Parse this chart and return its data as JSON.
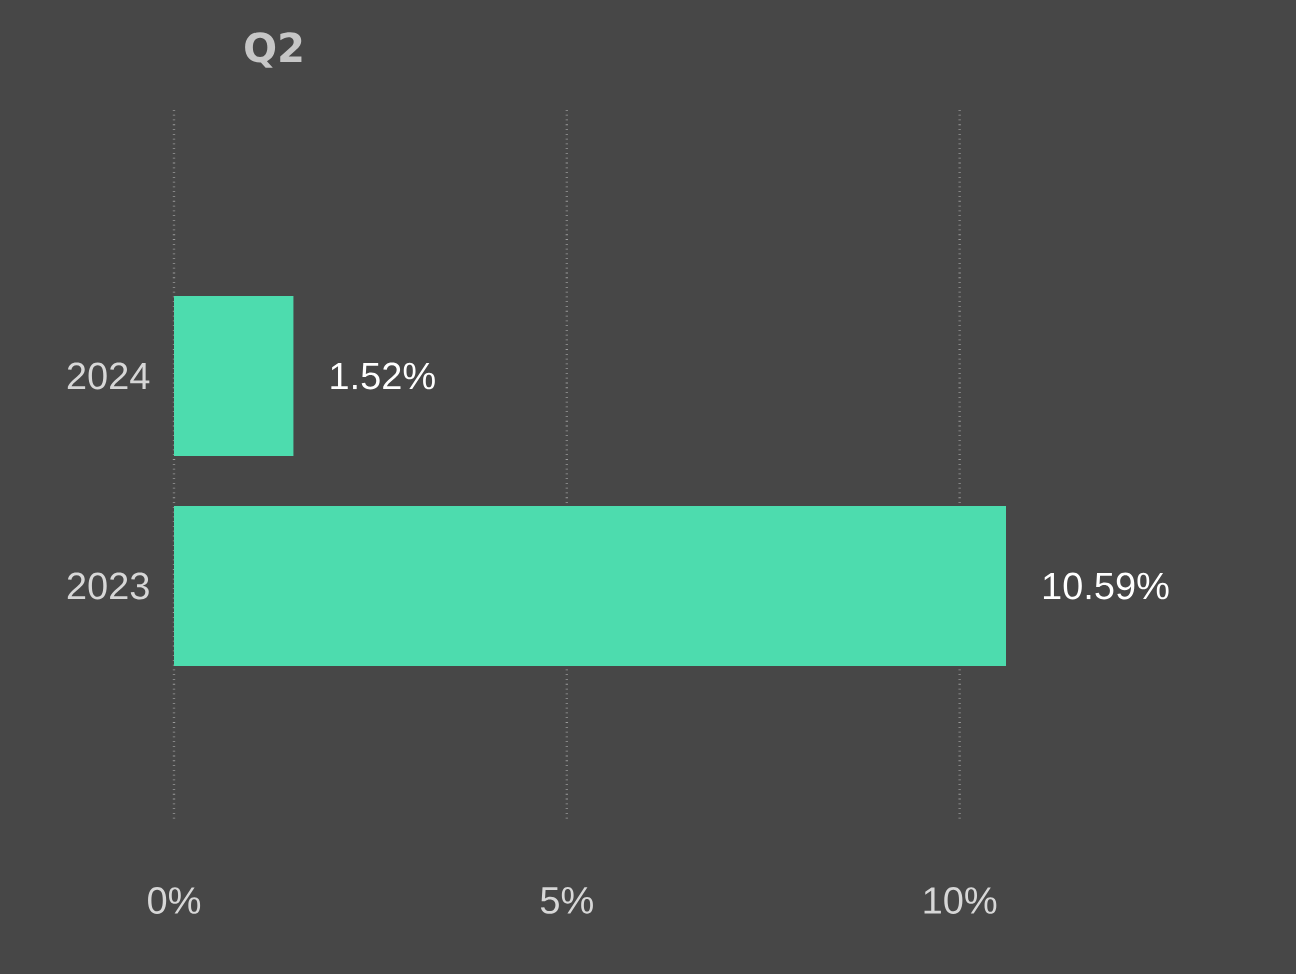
{
  "chart_data": {
    "type": "bar",
    "orientation": "horizontal",
    "title": "Q2",
    "categories": [
      "2024",
      "2023"
    ],
    "values": [
      1.52,
      10.59
    ],
    "color": "#4ddcae",
    "value_labels": [
      "1.52%",
      "10.59%"
    ],
    "xticks": [
      {
        "value": 0,
        "label": "0%"
      },
      {
        "value": 5,
        "label": "5%"
      },
      {
        "value": 10,
        "label": "10%"
      }
    ],
    "xlim": [
      0,
      10.59
    ],
    "grid": "x"
  }
}
